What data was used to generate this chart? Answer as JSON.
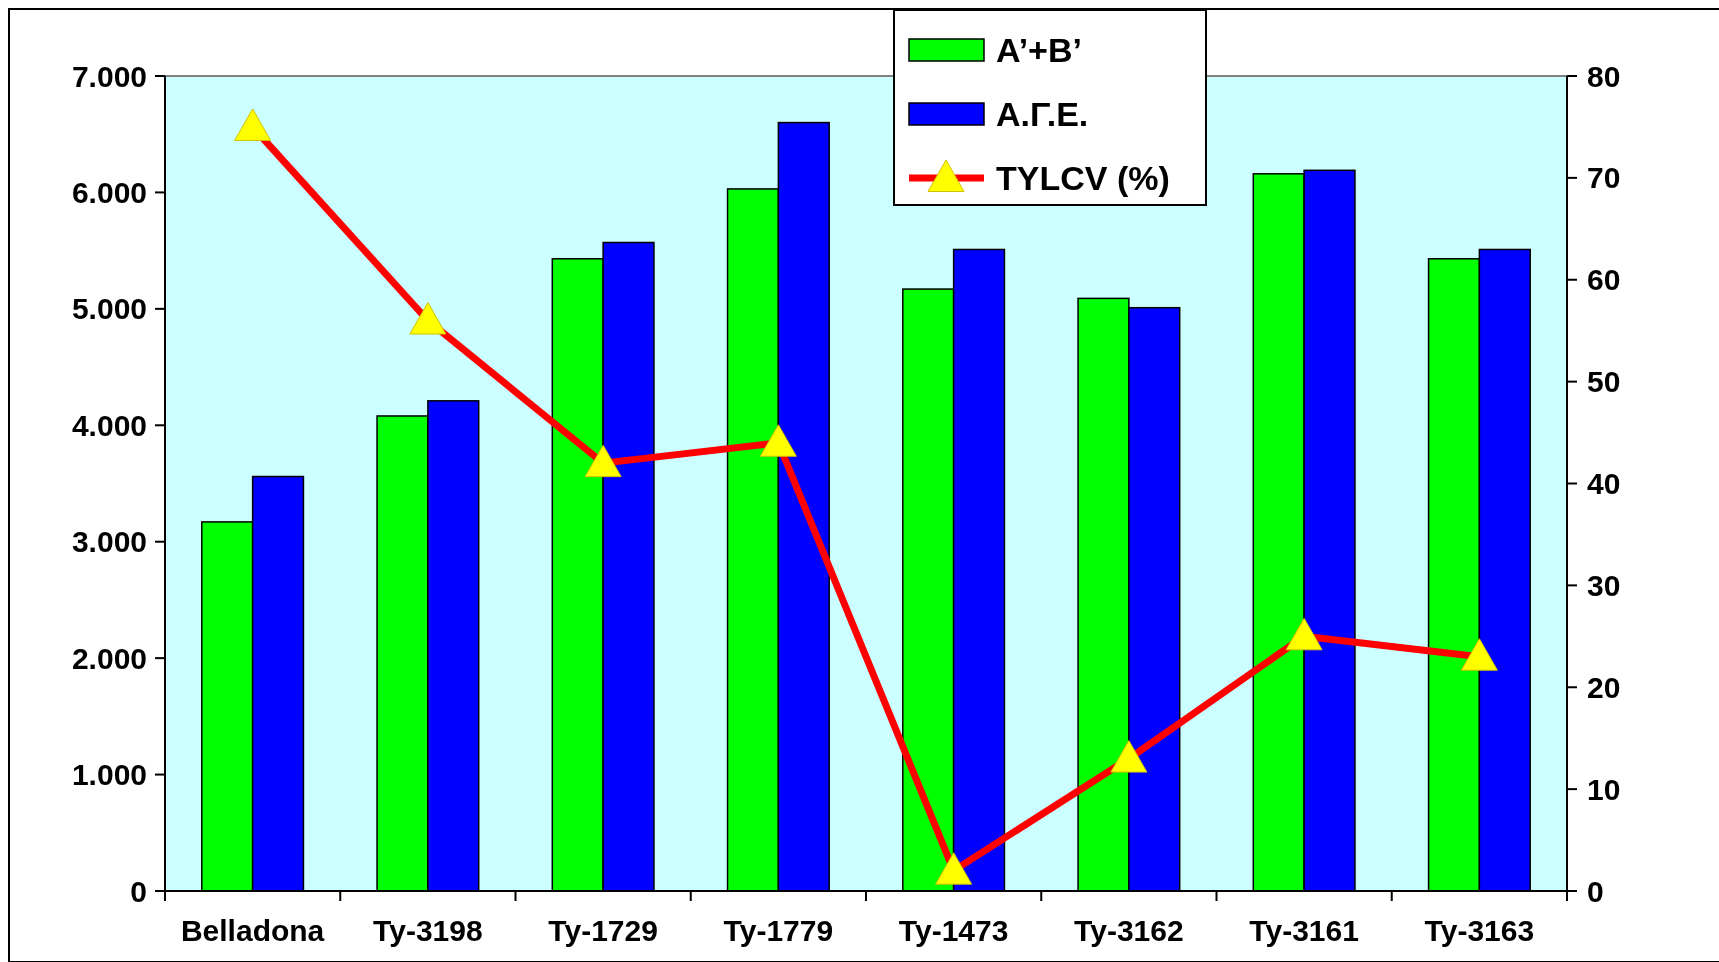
{
  "chart_data": {
    "type": "bar",
    "categories": [
      "Belladona",
      "Ty-3198",
      "Ty-1729",
      "Ty-1779",
      "Ty-1473",
      "Ty-3162",
      "Ty-3161",
      "Ty-3163"
    ],
    "series": [
      {
        "name": "A’+B’",
        "color": "#00ff00",
        "values": [
          3170,
          4080,
          5430,
          6030,
          5170,
          5090,
          6160,
          5430
        ]
      },
      {
        "name": "Α.Γ.Ε.",
        "color": "#0000ff",
        "values": [
          3560,
          4210,
          5570,
          6600,
          5510,
          5010,
          6190,
          5510
        ]
      },
      {
        "name": "TYLCV (%)",
        "type": "line",
        "axis": "y2",
        "color": "#ff0000",
        "marker": "triangle",
        "values": [
          75,
          56,
          42,
          44,
          2,
          13,
          25,
          23
        ]
      }
    ],
    "ylim": [
      0,
      7000
    ],
    "yticks": [
      0,
      {
        "value": 1000,
        "label": "1.000"
      },
      {
        "value": 2000,
        "label": "2.000"
      },
      {
        "value": 3000,
        "label": "3.000"
      },
      {
        "value": 4000,
        "label": "4.000"
      },
      {
        "value": 5000,
        "label": "5.000"
      },
      {
        "value": 6000,
        "label": "6.000"
      },
      {
        "value": 7000,
        "label": "7.000"
      }
    ],
    "y2lim": [
      0,
      80
    ],
    "y2ticks": [
      0,
      10,
      20,
      30,
      40,
      50,
      60,
      70,
      80
    ],
    "legend": "top"
  }
}
